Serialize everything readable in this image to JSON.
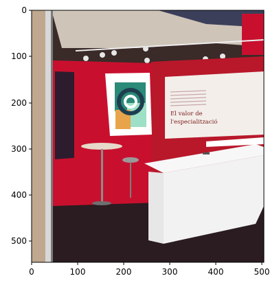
{
  "axes": {
    "x_ticks": [
      "0",
      "100",
      "200",
      "300",
      "400",
      "500"
    ],
    "y_ticks": [
      "0",
      "100",
      "200",
      "300",
      "400",
      "500"
    ]
  },
  "booth_sign": {
    "line1": "El valor de",
    "line2": "l'especialització"
  },
  "colors": {
    "wall_red": "#c8102e",
    "ceiling": "#cfc4b8",
    "counter_white": "#f2f2f2",
    "poster_teal": "#2b8a78",
    "poster_orange": "#e8a44a"
  }
}
